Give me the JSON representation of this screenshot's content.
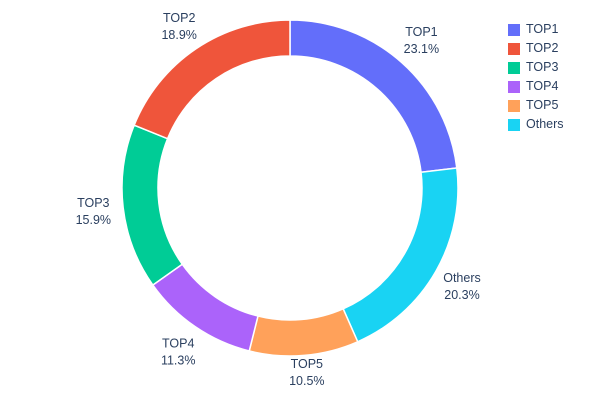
{
  "chart_data": {
    "type": "pie",
    "title": "",
    "hole": 0.785,
    "labels": [
      "TOP1",
      "TOP2",
      "TOP3",
      "TOP4",
      "TOP5",
      "Others"
    ],
    "values": [
      23.1,
      18.9,
      15.9,
      11.3,
      10.5,
      20.3
    ],
    "percent_labels": [
      "23.1%",
      "18.9%",
      "15.9%",
      "11.3%",
      "10.5%",
      "20.3%"
    ],
    "colors": [
      "#636EFA",
      "#EF553B",
      "#00CC96",
      "#AB63FA",
      "#FFA15A",
      "#19D3F3"
    ],
    "clockwise_order": [
      "TOP1",
      "Others",
      "TOP5",
      "TOP4",
      "TOP3",
      "TOP2"
    ],
    "label_position": "outside",
    "legend_position": "top-right",
    "text_color": "#2a3f5f",
    "background_color": "#ffffff"
  }
}
